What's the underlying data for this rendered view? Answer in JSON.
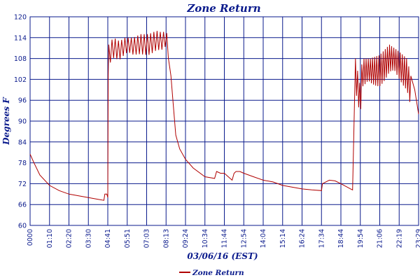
{
  "chart_data": {
    "type": "line",
    "title": "Zone Return",
    "xlabel": "03/06/16 (EST)",
    "ylabel": "Degrees F",
    "ylim": [
      60,
      120
    ],
    "yticks": [
      60,
      66,
      72,
      78,
      84,
      90,
      96,
      102,
      108,
      114,
      120
    ],
    "xticks": [
      "0000",
      "01:10",
      "02:20",
      "03:30",
      "04:41",
      "05:51",
      "07:03",
      "08:13",
      "09:24",
      "10:34",
      "11:44",
      "12:54",
      "14:04",
      "15:14",
      "16:24",
      "17:34",
      "18:44",
      "19:54",
      "21:06",
      "22:19",
      "23:29"
    ],
    "grid": true,
    "legend_position": "bottom-center",
    "colors": {
      "series": "#b00000",
      "grid": "#0a1a8c",
      "text": "#0a1a8c"
    },
    "series": [
      {
        "name": "Zone Return",
        "x_unit": "tick-index",
        "x": [
          0,
          0.2,
          0.5,
          1,
          1.5,
          2,
          2.5,
          3,
          3.2,
          3.5,
          3.8,
          3.85,
          3.95,
          4.0,
          4.02,
          4.05,
          4.15,
          4.3,
          4.6,
          4.9,
          5.3,
          5.7,
          6.1,
          6.5,
          6.8,
          7.0,
          7.1,
          7.2,
          7.25,
          7.35,
          7.5,
          7.7,
          8.0,
          8.4,
          9.0,
          9.5,
          9.6,
          9.8,
          10.0,
          10.1,
          10.4,
          10.5,
          10.6,
          10.8,
          11.0,
          11.5,
          12.0,
          12.5,
          13.0,
          13.5,
          14.0,
          14.5,
          15.0,
          15.05,
          15.4,
          15.7,
          16.0,
          16.5,
          16.6,
          16.75,
          17.0,
          17.1,
          17.5,
          18.0,
          18.5,
          19.0,
          19.4,
          19.6,
          19.8,
          20.0
        ],
        "y": [
          80.5,
          78,
          74.5,
          71.5,
          70,
          69,
          68.5,
          68,
          67.8,
          67.5,
          67.2,
          69,
          69,
          68,
          103,
          112,
          113,
          114,
          113,
          114,
          114,
          115,
          115,
          116,
          115.5,
          116,
          114,
          105,
          103,
          96,
          86,
          82,
          79,
          76.5,
          74,
          73.5,
          75.5,
          75,
          75,
          74.5,
          73,
          75,
          75.5,
          75.5,
          75,
          74,
          73,
          72.5,
          71.5,
          71,
          70.5,
          70.2,
          70,
          72,
          73,
          72.8,
          72,
          70.5,
          70.2,
          108,
          100,
          108,
          108,
          109,
          112,
          110,
          108,
          103,
          99,
          92
        ],
        "oscillation": [
          {
            "x_range": [
              4.05,
              7.2
            ],
            "amplitude_deg": 6,
            "cycles": 19
          },
          {
            "x_range": [
              16.75,
              19.6
            ],
            "amplitude_deg": 9,
            "cycles": 26
          }
        ]
      }
    ]
  }
}
